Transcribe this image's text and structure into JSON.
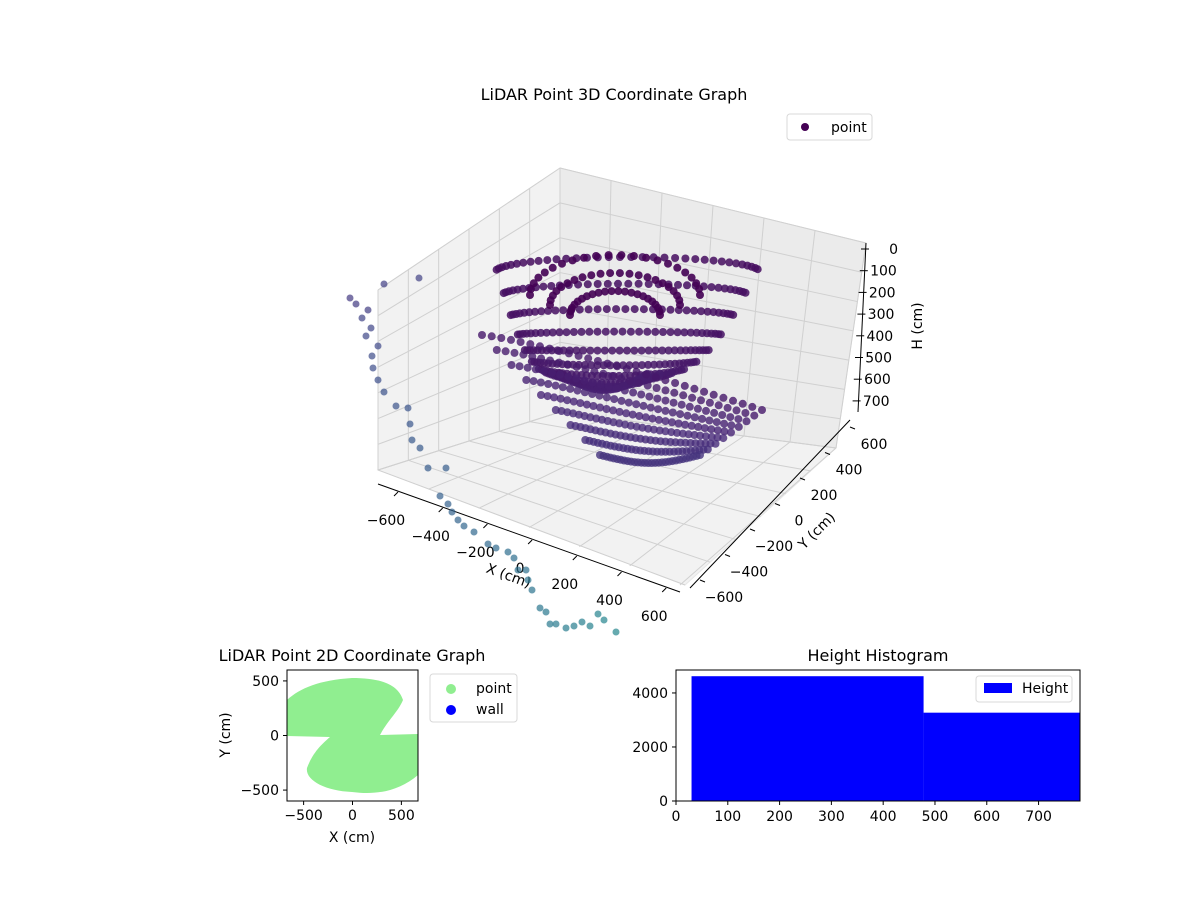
{
  "chart_data": [
    {
      "type": "scatter",
      "dimension": "3d",
      "title": "LiDAR Point 3D Coordinate Graph",
      "xlabel": "X (cm)",
      "ylabel": "Y (cm)",
      "zlabel": "H (cm)",
      "xticks": [
        "−600",
        "−400",
        "−200",
        "0",
        "200",
        "400",
        "600"
      ],
      "yticks": [
        "−600",
        "−400",
        "−200",
        "0",
        "200",
        "400",
        "600"
      ],
      "zticks": [
        "0",
        "100",
        "200",
        "300",
        "400",
        "500",
        "600",
        "700"
      ],
      "xlim": [
        -650,
        650
      ],
      "ylim": [
        -650,
        650
      ],
      "zlim": [
        0,
        750
      ],
      "z_inverted": true,
      "grid": true,
      "legend": {
        "position": "top-right",
        "entries": [
          {
            "label": "point",
            "color": "#440154"
          }
        ]
      },
      "colormap": "viridis"
    },
    {
      "type": "scatter",
      "title": "LiDAR Point 2D Coordinate Graph",
      "xlabel": "X (cm)",
      "ylabel": "Y (cm)",
      "xticks": [
        "−500",
        "0",
        "500"
      ],
      "yticks": [
        "−500",
        "0",
        "500"
      ],
      "xlim": [
        -670,
        670
      ],
      "ylim": [
        -600,
        600
      ],
      "series": [
        {
          "name": "point",
          "color": "#90ee90"
        },
        {
          "name": "wall",
          "color": "#0000ff"
        }
      ],
      "legend": {
        "position": "outside-right"
      }
    },
    {
      "type": "bar",
      "subtype": "histogram",
      "title": "Height Histogram",
      "xticks": [
        "0",
        "100",
        "200",
        "300",
        "400",
        "500",
        "600",
        "700"
      ],
      "yticks": [
        "0",
        "2000",
        "4000"
      ],
      "xlim": [
        0,
        780
      ],
      "ylim": [
        0,
        4850
      ],
      "bins": [
        {
          "from": 30,
          "to": 478,
          "count": 4620
        },
        {
          "from": 478,
          "to": 780,
          "count": 3270
        }
      ],
      "series": [
        {
          "name": "Height",
          "color": "#0000ff"
        }
      ],
      "legend": {
        "position": "top-right"
      }
    }
  ]
}
